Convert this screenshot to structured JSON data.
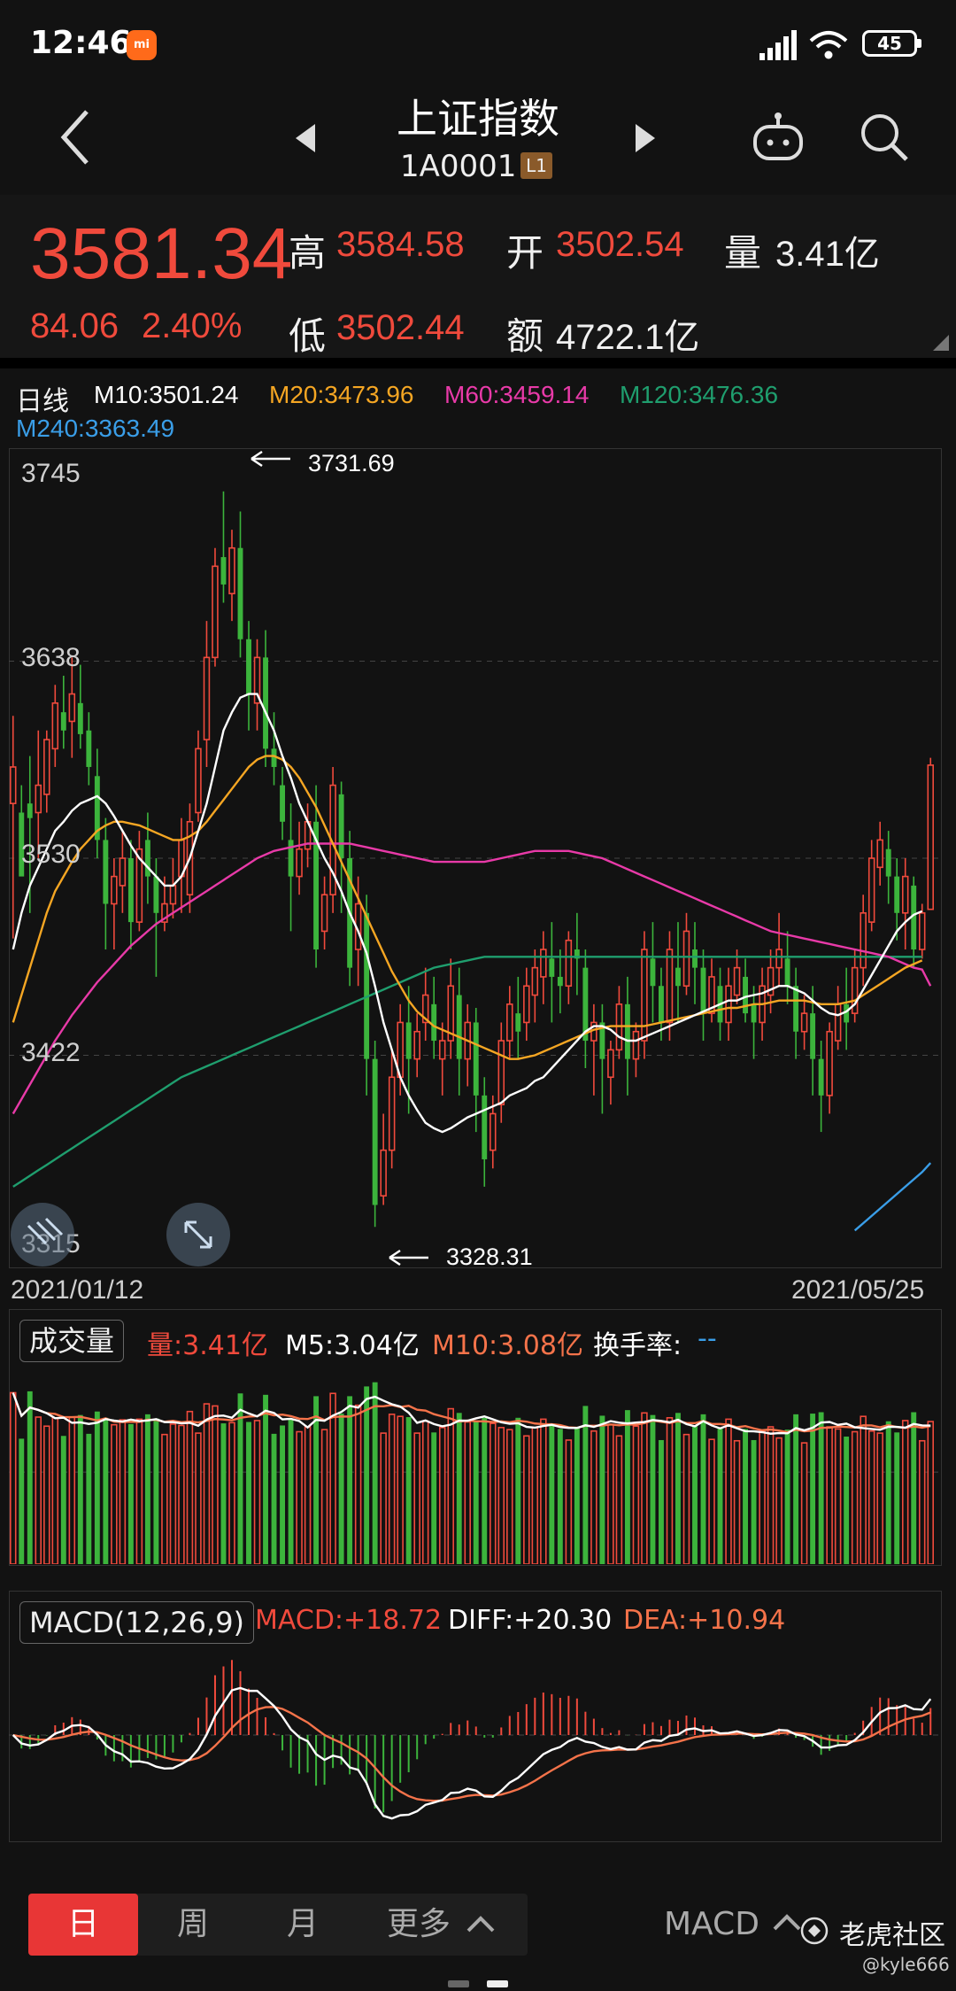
{
  "status_bar": {
    "time": "12:46",
    "battery": "45"
  },
  "header": {
    "title": "上证指数",
    "code": "1A0001",
    "level": "L1"
  },
  "quote": {
    "price": "3581.34",
    "change": "84.06",
    "change_pct": "2.40%",
    "high_label": "高",
    "high": "3584.58",
    "low_label": "低",
    "low": "3502.44",
    "open_label": "开",
    "open": "3502.54",
    "amount_label": "额",
    "amount": "4722.1亿",
    "volume_label": "量",
    "volume": "3.41亿"
  },
  "ma_legend": {
    "period": "日线",
    "m10": "M10:3501.24",
    "m20": "M20:3473.96",
    "m60": "M60:3459.14",
    "m120": "M120:3476.36",
    "m240": "M240:3363.49"
  },
  "colors": {
    "up": "#f04a3c",
    "down": "#3cb43c",
    "m10": "#ffffff",
    "m20": "#f5a623",
    "m60": "#e83aa8",
    "m120": "#1f9e6e",
    "m240": "#3a9ee8"
  },
  "chart_data": [
    {
      "type": "candlestick",
      "y_ticks": [
        "3745",
        "3638",
        "3530",
        "3422",
        "3315"
      ],
      "ylim": [
        3315,
        3745
      ],
      "x_start": "2021/01/12",
      "x_end": "2021/05/25",
      "annotations": [
        {
          "label": "3731.69",
          "kind": "high"
        },
        {
          "label": "3328.31",
          "kind": "low"
        }
      ],
      "ohlc": [
        [
          3560,
          3608,
          3580,
          3486
        ],
        [
          3555,
          3570,
          3520,
          3540
        ],
        [
          3560,
          3586,
          3552,
          3500
        ],
        [
          3555,
          3600,
          3570,
          3530
        ],
        [
          3565,
          3600,
          3595,
          3555
        ],
        [
          3590,
          3625,
          3615,
          3580
        ],
        [
          3610,
          3630,
          3600,
          3590
        ],
        [
          3605,
          3640,
          3620,
          3585
        ],
        [
          3615,
          3636,
          3598,
          3590
        ],
        [
          3600,
          3610,
          3580,
          3570
        ],
        [
          3575,
          3590,
          3540,
          3530
        ],
        [
          3540,
          3552,
          3505,
          3480
        ],
        [
          3505,
          3530,
          3520,
          3480
        ],
        [
          3515,
          3545,
          3530,
          3500
        ],
        [
          3530,
          3540,
          3495,
          3480
        ],
        [
          3495,
          3545,
          3535,
          3490
        ],
        [
          3540,
          3555,
          3520,
          3505
        ],
        [
          3520,
          3530,
          3500,
          3465
        ],
        [
          3495,
          3520,
          3505,
          3490
        ],
        [
          3505,
          3530,
          3515,
          3497
        ],
        [
          3520,
          3552,
          3540,
          3500
        ],
        [
          3510,
          3560,
          3550,
          3500
        ],
        [
          3555,
          3600,
          3590,
          3550
        ],
        [
          3595,
          3660,
          3640,
          3580
        ],
        [
          3640,
          3700,
          3690,
          3635
        ],
        [
          3695,
          3731,
          3680,
          3670
        ],
        [
          3675,
          3710,
          3700,
          3660
        ],
        [
          3700,
          3720,
          3650,
          3640
        ],
        [
          3650,
          3660,
          3620,
          3600
        ],
        [
          3615,
          3650,
          3640,
          3600
        ],
        [
          3640,
          3655,
          3590,
          3580
        ],
        [
          3590,
          3610,
          3580,
          3570
        ],
        [
          3570,
          3580,
          3550,
          3540
        ],
        [
          3540,
          3560,
          3520,
          3490
        ],
        [
          3520,
          3550,
          3535,
          3510
        ],
        [
          3535,
          3560,
          3550,
          3525
        ],
        [
          3550,
          3570,
          3480,
          3470
        ],
        [
          3490,
          3520,
          3510,
          3480
        ],
        [
          3510,
          3580,
          3570,
          3500
        ],
        [
          3565,
          3572,
          3530,
          3500
        ],
        [
          3530,
          3545,
          3470,
          3460
        ],
        [
          3480,
          3520,
          3505,
          3460
        ],
        [
          3500,
          3510,
          3420,
          3400
        ],
        [
          3420,
          3430,
          3340,
          3328
        ],
        [
          3345,
          3390,
          3370,
          3340
        ],
        [
          3370,
          3425,
          3410,
          3360
        ],
        [
          3410,
          3450,
          3440,
          3400
        ],
        [
          3440,
          3460,
          3420,
          3390
        ],
        [
          3420,
          3445,
          3435,
          3410
        ],
        [
          3440,
          3470,
          3455,
          3430
        ],
        [
          3450,
          3465,
          3430,
          3420
        ],
        [
          3420,
          3440,
          3430,
          3400
        ],
        [
          3430,
          3475,
          3460,
          3420
        ],
        [
          3455,
          3470,
          3420,
          3400
        ],
        [
          3420,
          3450,
          3440,
          3405
        ],
        [
          3440,
          3448,
          3400,
          3380
        ],
        [
          3400,
          3410,
          3365,
          3350
        ],
        [
          3370,
          3400,
          3390,
          3360
        ],
        [
          3395,
          3440,
          3430,
          3385
        ],
        [
          3430,
          3460,
          3450,
          3420
        ],
        [
          3445,
          3465,
          3435,
          3420
        ],
        [
          3440,
          3470,
          3460,
          3430
        ],
        [
          3455,
          3480,
          3470,
          3440
        ],
        [
          3465,
          3490,
          3480,
          3450
        ],
        [
          3475,
          3495,
          3465,
          3440
        ],
        [
          3465,
          3480,
          3460,
          3445
        ],
        [
          3460,
          3490,
          3485,
          3450
        ],
        [
          3480,
          3500,
          3475,
          3455
        ],
        [
          3470,
          3480,
          3430,
          3415
        ],
        [
          3430,
          3450,
          3440,
          3400
        ],
        [
          3440,
          3450,
          3420,
          3390
        ],
        [
          3410,
          3430,
          3425,
          3395
        ],
        [
          3425,
          3460,
          3450,
          3420
        ],
        [
          3450,
          3465,
          3420,
          3400
        ],
        [
          3420,
          3440,
          3435,
          3410
        ],
        [
          3430,
          3490,
          3480,
          3420
        ],
        [
          3475,
          3495,
          3460,
          3440
        ],
        [
          3460,
          3470,
          3440,
          3430
        ],
        [
          3440,
          3490,
          3480,
          3430
        ],
        [
          3470,
          3495,
          3460,
          3440
        ],
        [
          3460,
          3500,
          3490,
          3455
        ],
        [
          3480,
          3495,
          3470,
          3450
        ],
        [
          3470,
          3480,
          3445,
          3430
        ],
        [
          3445,
          3475,
          3465,
          3440
        ],
        [
          3460,
          3470,
          3440,
          3430
        ],
        [
          3440,
          3470,
          3460,
          3430
        ],
        [
          3455,
          3480,
          3470,
          3450
        ],
        [
          3465,
          3475,
          3445,
          3440
        ],
        [
          3450,
          3460,
          3440,
          3420
        ],
        [
          3440,
          3470,
          3460,
          3430
        ],
        [
          3455,
          3480,
          3470,
          3445
        ],
        [
          3470,
          3500,
          3480,
          3460
        ],
        [
          3475,
          3490,
          3460,
          3450
        ],
        [
          3460,
          3470,
          3435,
          3420
        ],
        [
          3435,
          3455,
          3445,
          3425
        ],
        [
          3445,
          3460,
          3420,
          3400
        ],
        [
          3420,
          3430,
          3400,
          3380
        ],
        [
          3400,
          3440,
          3435,
          3390
        ],
        [
          3430,
          3460,
          3450,
          3425
        ],
        [
          3450,
          3470,
          3440,
          3425
        ],
        [
          3445,
          3480,
          3470,
          3440
        ],
        [
          3470,
          3510,
          3500,
          3460
        ],
        [
          3495,
          3540,
          3530,
          3490
        ],
        [
          3525,
          3550,
          3540,
          3515
        ],
        [
          3535,
          3545,
          3520,
          3505
        ],
        [
          3520,
          3530,
          3500,
          3485
        ],
        [
          3500,
          3530,
          3520,
          3480
        ],
        [
          3515,
          3520,
          3480,
          3470
        ],
        [
          3480,
          3505,
          3500,
          3475
        ],
        [
          3502,
          3585,
          3581,
          3502
        ]
      ],
      "ma10": [
        3480,
        3500,
        3515,
        3525,
        3535,
        3545,
        3550,
        3556,
        3560,
        3562,
        3564,
        3560,
        3553,
        3545,
        3537,
        3530,
        3525,
        3520,
        3515,
        3515,
        3520,
        3530,
        3545,
        3560,
        3580,
        3600,
        3610,
        3618,
        3620,
        3620,
        3610,
        3600,
        3586,
        3574,
        3560,
        3550,
        3540,
        3530,
        3522,
        3512,
        3500,
        3490,
        3478,
        3460,
        3440,
        3425,
        3410,
        3400,
        3392,
        3385,
        3382,
        3380,
        3382,
        3385,
        3388,
        3390,
        3392,
        3394,
        3396,
        3400,
        3402,
        3404,
        3408,
        3410,
        3415,
        3420,
        3425,
        3430,
        3435,
        3438,
        3438,
        3436,
        3432,
        3430,
        3430,
        3432,
        3434,
        3436,
        3438,
        3440,
        3442,
        3444,
        3446,
        3448,
        3450,
        3452,
        3452,
        3454,
        3455,
        3456,
        3458,
        3460,
        3460,
        3458,
        3456,
        3452,
        3448,
        3445,
        3444,
        3446,
        3450,
        3458,
        3466,
        3474,
        3482,
        3490,
        3495,
        3499,
        3501
      ],
      "ma20": [
        3440,
        3455,
        3470,
        3485,
        3500,
        3512,
        3520,
        3528,
        3535,
        3540,
        3545,
        3548,
        3550,
        3550,
        3549,
        3548,
        3546,
        3544,
        3542,
        3540,
        3540,
        3542,
        3545,
        3550,
        3556,
        3562,
        3568,
        3574,
        3580,
        3584,
        3586,
        3586,
        3584,
        3580,
        3574,
        3566,
        3558,
        3548,
        3538,
        3528,
        3518,
        3508,
        3498,
        3488,
        3478,
        3468,
        3460,
        3452,
        3446,
        3442,
        3438,
        3436,
        3434,
        3432,
        3430,
        3428,
        3426,
        3424,
        3422,
        3420,
        3420,
        3421,
        3422,
        3424,
        3426,
        3428,
        3430,
        3432,
        3434,
        3436,
        3437,
        3438,
        3438,
        3438,
        3438,
        3438,
        3439,
        3440,
        3441,
        3442,
        3443,
        3444,
        3445,
        3446,
        3447,
        3448,
        3448,
        3449,
        3450,
        3450,
        3451,
        3452,
        3452,
        3452,
        3452,
        3451,
        3450,
        3450,
        3450,
        3451,
        3452,
        3455,
        3458,
        3461,
        3464,
        3467,
        3470,
        3472,
        3474
      ],
      "ma60": [
        3390,
        3398,
        3406,
        3414,
        3422,
        3430,
        3437,
        3444,
        3450,
        3456,
        3462,
        3467,
        3472,
        3477,
        3482,
        3486,
        3490,
        3494,
        3497,
        3500,
        3503,
        3506,
        3509,
        3512,
        3515,
        3518,
        3521,
        3524,
        3527,
        3530,
        3532,
        3534,
        3535,
        3536,
        3537,
        3538,
        3538,
        3538,
        3538,
        3538,
        3538,
        3537,
        3536,
        3535,
        3534,
        3533,
        3532,
        3531,
        3530,
        3529,
        3528,
        3528,
        3528,
        3528,
        3528,
        3528,
        3528,
        3529,
        3530,
        3531,
        3532,
        3533,
        3534,
        3534,
        3534,
        3534,
        3534,
        3533,
        3532,
        3531,
        3530,
        3528,
        3526,
        3524,
        3522,
        3520,
        3518,
        3516,
        3514,
        3512,
        3510,
        3508,
        3506,
        3504,
        3502,
        3500,
        3498,
        3496,
        3494,
        3492,
        3490,
        3489,
        3488,
        3487,
        3486,
        3485,
        3484,
        3483,
        3482,
        3481,
        3480,
        3479,
        3478,
        3477,
        3476,
        3474,
        3472,
        3470,
        3469,
        3460
      ],
      "ma120": [
        3350,
        3353,
        3356,
        3359,
        3362,
        3365,
        3368,
        3371,
        3374,
        3377,
        3380,
        3383,
        3386,
        3389,
        3392,
        3395,
        3398,
        3401,
        3404,
        3407,
        3410,
        3412,
        3414,
        3416,
        3418,
        3420,
        3422,
        3424,
        3426,
        3428,
        3430,
        3432,
        3434,
        3436,
        3438,
        3440,
        3442,
        3444,
        3446,
        3448,
        3450,
        3452,
        3454,
        3456,
        3458,
        3460,
        3462,
        3464,
        3466,
        3468,
        3470,
        3471,
        3472,
        3473,
        3474,
        3475,
        3476,
        3476,
        3476,
        3476,
        3476,
        3476,
        3476,
        3476,
        3476,
        3476,
        3476,
        3476,
        3476,
        3476,
        3476,
        3476,
        3476,
        3476,
        3476,
        3476,
        3476,
        3476,
        3476,
        3476,
        3476,
        3476,
        3476,
        3476,
        3476,
        3476,
        3476,
        3476,
        3476,
        3476,
        3476,
        3476,
        3476,
        3476,
        3476,
        3476,
        3476,
        3476,
        3476,
        3476,
        3476,
        3476,
        3476,
        3476,
        3476,
        3476,
        3476,
        3476,
        3476
      ],
      "ma240_tail": [
        3326,
        3330,
        3334,
        3338,
        3342,
        3346,
        3350,
        3354,
        3358,
        3363
      ]
    },
    {
      "type": "bar",
      "label": "成交量",
      "vol_label": "量:3.41亿",
      "m5_label": "M5:3.04亿",
      "m10_label": "M10:3.08亿",
      "turnover_label": "换手率:",
      "turnover_value": "--",
      "ylim": [
        0,
        5
      ]
    },
    {
      "type": "bar",
      "label": "MACD(12,26,9)",
      "macd_label": "MACD:+18.72",
      "diff_label": "DIFF:+20.30",
      "dea_label": "DEA:+10.94",
      "ylim": [
        -60,
        60
      ]
    }
  ],
  "bottom_bar": {
    "tabs": [
      "日",
      "周",
      "月",
      "更多"
    ],
    "indicator": "MACD",
    "watermark": "老虎社区",
    "user": "@kyle666"
  }
}
